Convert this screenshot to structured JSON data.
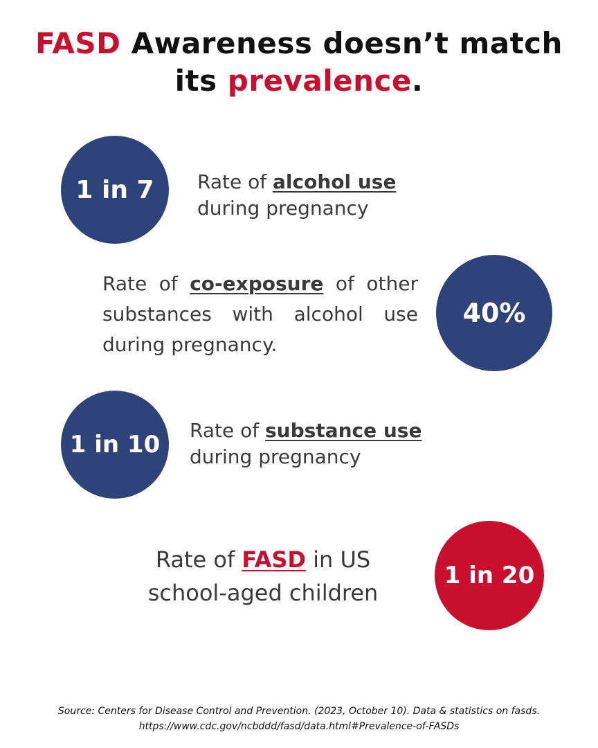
{
  "title": {
    "line1_highlight": "FASD",
    "line1_rest": " Awareness doesn’t match",
    "line2_start": "its ",
    "line2_highlight": "prevalence",
    "line2_end": "."
  },
  "stats": [
    {
      "value": "1 in 7",
      "text_before": "Rate of ",
      "keyword": "alcohol use",
      "text_after": "during pregnancy"
    },
    {
      "value": "40%",
      "text_before": "Rate of ",
      "keyword": "co-exposure",
      "text_after": " of other substances with alcohol use during pregnancy."
    },
    {
      "value": "1 in 10",
      "text_before": "Rate of ",
      "keyword": "substance use",
      "text_after": "during pregnancy"
    },
    {
      "value": "1 in 20",
      "text_before": "Rate of ",
      "keyword": "FASD",
      "text_mid": " in US",
      "text_after": "school-aged children"
    }
  ],
  "source": {
    "line1": "Source: Centers for Disease Control and Prevention. (2023, October 10). Data & statistics on fasds.",
    "line2": "https://www.cdc.gov/ncbddd/fasd/data.html#Prevalence-of-FASDs"
  },
  "colors": {
    "navy": "#2d437a",
    "red": "#c8102e",
    "text": "#3a3a3a"
  }
}
